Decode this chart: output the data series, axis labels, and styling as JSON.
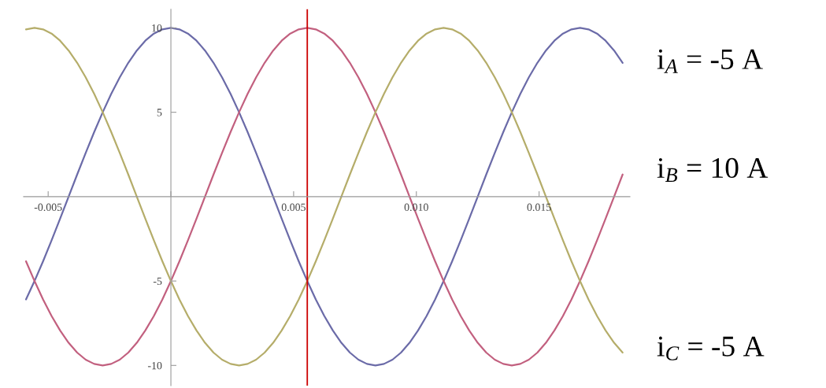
{
  "chart_data": {
    "type": "line",
    "x": [
      -0.005903,
      -0.005556,
      -0.005208,
      -0.004861,
      -0.004514,
      -0.004167,
      -0.003819,
      -0.003472,
      -0.003125,
      -0.002778,
      -0.002431,
      -0.002083,
      -0.001736,
      -0.001389,
      -0.001042,
      -0.000694,
      -0.000347,
      0,
      0.000347,
      0.000694,
      0.001042,
      0.001389,
      0.001736,
      0.002083,
      0.002431,
      0.002778,
      0.003125,
      0.003472,
      0.003819,
      0.004167,
      0.004514,
      0.004861,
      0.005208,
      0.005556,
      0.005903,
      0.00625,
      0.006597,
      0.006944,
      0.007292,
      0.007639,
      0.007986,
      0.008333,
      0.008681,
      0.009028,
      0.009375,
      0.009722,
      0.010069,
      0.010417,
      0.010764,
      0.011111,
      0.011458,
      0.011806,
      0.012153,
      0.0125,
      0.012847,
      0.013194,
      0.013542,
      0.013889,
      0.014236,
      0.014583,
      0.014931,
      0.015278,
      0.015625,
      0.015972,
      0.016319,
      0.016667,
      0.017014,
      0.017361,
      0.017708,
      0.018056,
      0.018403
    ],
    "series": [
      {
        "color": "#6b6ba8",
        "values": [
          -6.09,
          -5,
          -3.83,
          -2.59,
          -1.31,
          0,
          1.31,
          2.59,
          3.83,
          5,
          6.09,
          7.07,
          7.93,
          8.66,
          9.24,
          9.66,
          9.91,
          10,
          9.91,
          9.66,
          9.24,
          8.66,
          7.93,
          7.07,
          6.09,
          5,
          3.83,
          2.59,
          1.31,
          0,
          -1.31,
          -2.59,
          -3.83,
          -5,
          -6.09,
          -7.07,
          -7.93,
          -8.66,
          -9.24,
          -9.66,
          -9.91,
          -10,
          -9.91,
          -9.66,
          -9.24,
          -8.66,
          -7.93,
          -7.07,
          -6.09,
          -5,
          -3.83,
          -2.59,
          -1.31,
          0,
          1.31,
          2.59,
          3.83,
          5,
          6.09,
          7.07,
          7.93,
          8.66,
          9.24,
          9.66,
          9.91,
          10,
          9.91,
          9.66,
          9.24,
          8.66,
          7.93
        ]
      },
      {
        "color": "#c2607f",
        "values": [
          -3.83,
          -5,
          -6.09,
          -7.07,
          -7.93,
          -8.66,
          -9.24,
          -9.66,
          -9.91,
          -10,
          -9.91,
          -9.66,
          -9.24,
          -8.66,
          -7.93,
          -7.07,
          -6.09,
          -5,
          -3.83,
          -2.59,
          -1.31,
          0,
          1.31,
          2.59,
          3.83,
          5,
          6.09,
          7.07,
          7.93,
          8.66,
          9.24,
          9.66,
          9.91,
          10,
          9.91,
          9.66,
          9.24,
          8.66,
          7.93,
          7.07,
          6.09,
          5,
          3.83,
          2.59,
          1.31,
          0,
          -1.31,
          -2.59,
          -3.83,
          -5,
          -6.09,
          -7.07,
          -7.93,
          -8.66,
          -9.24,
          -9.66,
          -9.91,
          -10,
          -9.91,
          -9.66,
          -9.24,
          -8.66,
          -7.93,
          -7.07,
          -6.09,
          -5,
          -3.83,
          -2.59,
          -1.31,
          0,
          1.31
        ]
      },
      {
        "color": "#b5ad6a",
        "values": [
          9.91,
          10,
          9.91,
          9.66,
          9.24,
          8.66,
          7.93,
          7.07,
          6.09,
          5,
          3.83,
          2.59,
          1.31,
          0,
          -1.31,
          -2.59,
          -3.83,
          -5,
          -6.09,
          -7.07,
          -7.93,
          -8.66,
          -9.24,
          -9.66,
          -9.91,
          -10,
          -9.91,
          -9.66,
          -9.24,
          -8.66,
          -7.93,
          -7.07,
          -6.09,
          -5,
          -3.83,
          -2.59,
          -1.31,
          0,
          1.31,
          2.59,
          3.83,
          5,
          6.09,
          7.07,
          7.93,
          8.66,
          9.24,
          9.66,
          9.91,
          10,
          9.91,
          9.66,
          9.24,
          8.66,
          7.93,
          7.07,
          6.09,
          5,
          3.83,
          2.59,
          1.31,
          0,
          -1.31,
          -2.59,
          -3.83,
          -5,
          -6.09,
          -7.07,
          -7.93,
          -8.66,
          -9.24
        ]
      }
    ],
    "xlim": [
      -0.006,
      0.0187
    ],
    "ylim": [
      -11.2,
      11.1
    ],
    "xticks": [
      -0.005,
      {
        "value": 0,
        "label": null
      },
      0.005,
      {
        "value": 0.01,
        "label": "0.010"
      },
      0.015
    ],
    "yticks": [
      -10,
      -5,
      5,
      10
    ],
    "ref_lines": [
      {
        "axis": "x",
        "value": 0.005556,
        "color": "#cc0000"
      }
    ],
    "annotations": [
      "i$_{A}$ = -5 A",
      "i$_{B}$ = 10 A",
      "i$_{C}$ = -5 A"
    ],
    "grid": false,
    "legend": false
  }
}
